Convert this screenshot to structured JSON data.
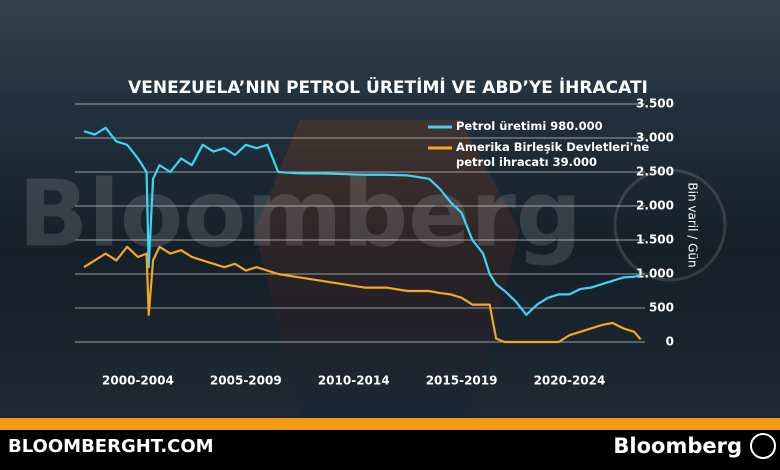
{
  "chart_data": {
    "type": "line",
    "title": "VENEZUELA’NIN PETROL ÜRETİMİ VE ABD’YE İHRACATI",
    "y_label": "Bin varil / Gün",
    "x": [
      2000,
      2000.5,
      2001,
      2001.5,
      2002,
      2002.5,
      2002.9,
      2003.0,
      2003.2,
      2003.5,
      2004,
      2004.5,
      2005,
      2005.5,
      2006,
      2006.5,
      2007,
      2007.5,
      2008,
      2008.5,
      2009,
      2010,
      2011,
      2012,
      2013,
      2014,
      2015,
      2016,
      2016.5,
      2017,
      2017.5,
      2018,
      2018.5,
      2018.8,
      2019.1,
      2019.5,
      2020,
      2020.5,
      2021,
      2021.5,
      2022,
      2022.5,
      2023,
      2023.5,
      2024,
      2024.5,
      2025,
      2025.5,
      2025.8
    ],
    "series": [
      {
        "name": "Petrol üretimi 980.000",
        "color": "#3fd4f0",
        "values": [
          3100,
          3050,
          3150,
          2950,
          2900,
          2700,
          2500,
          1100,
          2400,
          2600,
          2500,
          2700,
          2600,
          2900,
          2800,
          2850,
          2750,
          2900,
          2850,
          2900,
          2500,
          2480,
          2480,
          2470,
          2460,
          2460,
          2450,
          2400,
          2250,
          2050,
          1900,
          1500,
          1300,
          1000,
          850,
          750,
          600,
          400,
          550,
          650,
          700,
          700,
          780,
          800,
          850,
          900,
          950,
          960,
          980
        ]
      },
      {
        "name": "Amerika Birleşik Devletleri'ne petrol ihracatı 39.000",
        "color": "#f5a623",
        "values": [
          1100,
          1200,
          1300,
          1200,
          1400,
          1250,
          1300,
          400,
          1200,
          1400,
          1300,
          1350,
          1250,
          1200,
          1150,
          1100,
          1150,
          1050,
          1100,
          1050,
          1000,
          950,
          900,
          850,
          800,
          800,
          750,
          750,
          720,
          700,
          650,
          550,
          550,
          550,
          50,
          0,
          0,
          0,
          0,
          0,
          0,
          100,
          150,
          200,
          250,
          280,
          200,
          150,
          39
        ]
      }
    ],
    "xlim": [
      2000,
      2026
    ],
    "xticks": [
      {
        "value": 2002.5,
        "label": "2000-2004"
      },
      {
        "value": 2007.5,
        "label": "2005-2009"
      },
      {
        "value": 2012.5,
        "label": "2010-2014"
      },
      {
        "value": 2017.5,
        "label": "2015-2019"
      },
      {
        "value": 2022.5,
        "label": "2020-2024"
      }
    ],
    "ylim": [
      0,
      3500
    ],
    "yticks": [
      0,
      {
        "value": 500,
        "label": "500"
      },
      {
        "value": 1000,
        "label": "1.000"
      },
      {
        "value": 1500,
        "label": "1.500"
      },
      {
        "value": 2000,
        "label": "2.000"
      },
      {
        "value": 2500,
        "label": "2.500"
      },
      {
        "value": 3000,
        "label": "3.000"
      },
      {
        "value": 3500,
        "label": "3.500"
      }
    ],
    "grid": true,
    "legend": "top-right"
  },
  "watermark": "Bloomberg",
  "footer": {
    "site": "BLOOMBERGHT.COM",
    "brand": "Bloomberg"
  }
}
